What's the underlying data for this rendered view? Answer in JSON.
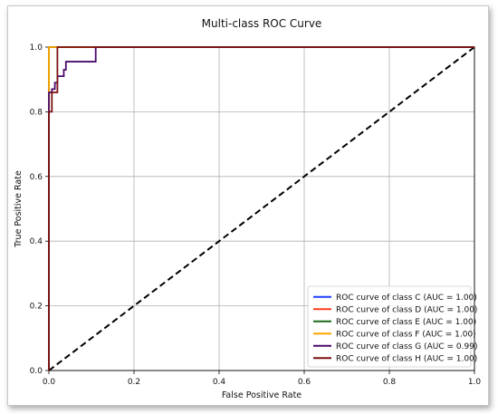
{
  "chart_data": {
    "type": "line",
    "title": "Multi-class ROC Curve",
    "xlabel": "False Positive Rate",
    "ylabel": "True Positive Rate",
    "xlim": [
      0.0,
      1.0
    ],
    "ylim": [
      0.0,
      1.0
    ],
    "x_ticks": [
      "0.0",
      "0.2",
      "0.4",
      "0.6",
      "0.8",
      "1.0"
    ],
    "y_ticks": [
      "0.0",
      "0.2",
      "0.4",
      "0.6",
      "0.8",
      "1.0"
    ],
    "grid": true,
    "legend_position": "lower-right",
    "series": [
      {
        "name": "ROC curve of class C (AUC = 1.00)",
        "color": "#1f3fff",
        "x": [
          0.0,
          0.0,
          1.0
        ],
        "y": [
          0.0,
          1.0,
          1.0
        ]
      },
      {
        "name": "ROC curve of class D (AUC = 1.00)",
        "color": "#ff3b1f",
        "x": [
          0.0,
          0.0,
          1.0
        ],
        "y": [
          0.0,
          1.0,
          1.0
        ]
      },
      {
        "name": "ROC curve of class E (AUC = 1.00)",
        "color": "#1a6b1a",
        "x": [
          0.0,
          0.0,
          1.0
        ],
        "y": [
          0.0,
          1.0,
          1.0
        ]
      },
      {
        "name": "ROC curve of class F (AUC = 1.00)",
        "color": "#ffa500",
        "x": [
          0.0,
          0.0,
          0.02,
          1.0
        ],
        "y": [
          0.0,
          1.0,
          1.0,
          1.0
        ]
      },
      {
        "name": "ROC curve of class G (AUC = 0.99)",
        "color": "#4b0a6b",
        "x": [
          0.0,
          0.0,
          0.007,
          0.007,
          0.014,
          0.014,
          0.02,
          0.02,
          0.035,
          0.035,
          0.04,
          0.04,
          0.11,
          0.11,
          1.0
        ],
        "y": [
          0.0,
          0.86,
          0.86,
          0.87,
          0.87,
          0.89,
          0.89,
          0.91,
          0.91,
          0.93,
          0.93,
          0.955,
          0.955,
          1.0,
          1.0
        ]
      },
      {
        "name": "ROC curve of class H (AUC = 1.00)",
        "color": "#7a1010",
        "x": [
          0.0,
          0.0,
          0.007,
          0.007,
          0.02,
          0.02,
          1.0
        ],
        "y": [
          0.0,
          0.8,
          0.8,
          0.86,
          0.86,
          1.0,
          1.0
        ]
      }
    ],
    "reference_line": {
      "x": [
        0.0,
        1.0
      ],
      "y": [
        0.0,
        1.0
      ],
      "style": "dashed",
      "color": "#000000"
    }
  }
}
